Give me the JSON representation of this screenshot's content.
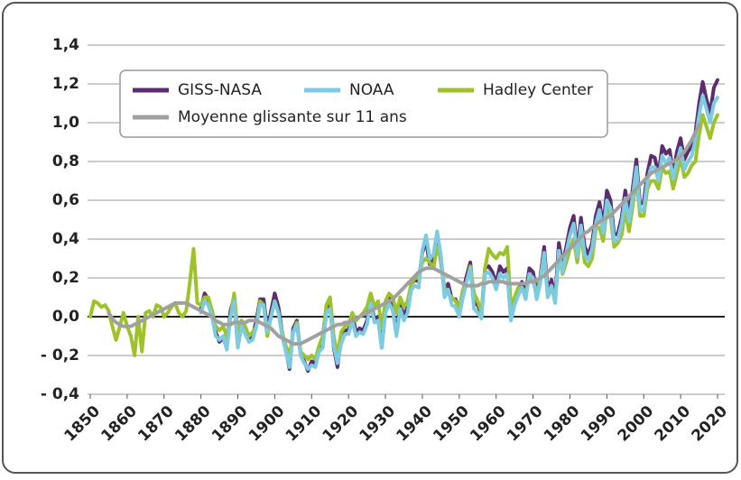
{
  "chart_data": {
    "type": "line",
    "x": [
      1850,
      1851,
      1852,
      1853,
      1854,
      1855,
      1856,
      1857,
      1858,
      1859,
      1860,
      1861,
      1862,
      1863,
      1864,
      1865,
      1866,
      1867,
      1868,
      1869,
      1870,
      1871,
      1872,
      1873,
      1874,
      1875,
      1876,
      1877,
      1878,
      1879,
      1880,
      1881,
      1882,
      1883,
      1884,
      1885,
      1886,
      1887,
      1888,
      1889,
      1890,
      1891,
      1892,
      1893,
      1894,
      1895,
      1896,
      1897,
      1898,
      1899,
      1900,
      1901,
      1902,
      1903,
      1904,
      1905,
      1906,
      1907,
      1908,
      1909,
      1910,
      1911,
      1912,
      1913,
      1914,
      1915,
      1916,
      1917,
      1918,
      1919,
      1920,
      1921,
      1922,
      1923,
      1924,
      1925,
      1926,
      1927,
      1928,
      1929,
      1930,
      1931,
      1932,
      1933,
      1934,
      1935,
      1936,
      1937,
      1938,
      1939,
      1940,
      1941,
      1942,
      1943,
      1944,
      1945,
      1946,
      1947,
      1948,
      1949,
      1950,
      1951,
      1952,
      1953,
      1954,
      1955,
      1956,
      1957,
      1958,
      1959,
      1960,
      1961,
      1962,
      1963,
      1964,
      1965,
      1966,
      1967,
      1968,
      1969,
      1970,
      1971,
      1972,
      1973,
      1974,
      1975,
      1976,
      1977,
      1978,
      1979,
      1980,
      1981,
      1982,
      1983,
      1984,
      1985,
      1986,
      1987,
      1988,
      1989,
      1990,
      1991,
      1992,
      1993,
      1994,
      1995,
      1996,
      1997,
      1998,
      1999,
      2000,
      2001,
      2002,
      2003,
      2004,
      2005,
      2006,
      2007,
      2008,
      2009,
      2010,
      2011,
      2012,
      2013,
      2014,
      2015,
      2016,
      2017,
      2018,
      2019,
      2020
    ],
    "series": [
      {
        "name": "GISS-NASA",
        "color": "#5b2d6e",
        "values": [
          null,
          null,
          null,
          null,
          null,
          null,
          null,
          null,
          null,
          null,
          null,
          null,
          null,
          null,
          null,
          null,
          null,
          null,
          null,
          null,
          null,
          null,
          null,
          null,
          null,
          null,
          null,
          null,
          null,
          null,
          0.04,
          0.12,
          0.09,
          0.03,
          -0.08,
          -0.13,
          -0.11,
          -0.16,
          0.03,
          0.1,
          -0.15,
          -0.02,
          -0.07,
          -0.11,
          -0.1,
          -0.02,
          0.09,
          0.09,
          -0.07,
          0.03,
          0.12,
          0.05,
          -0.08,
          -0.17,
          -0.27,
          -0.06,
          -0.02,
          -0.19,
          -0.23,
          -0.28,
          -0.23,
          -0.24,
          -0.16,
          -0.14,
          0.05,
          0.06,
          -0.16,
          -0.26,
          -0.1,
          -0.07,
          -0.07,
          0.01,
          -0.08,
          -0.06,
          -0.07,
          -0.02,
          0.1,
          -0.02,
          0.0,
          -0.16,
          0.04,
          0.1,
          0.04,
          -0.09,
          0.07,
          0.0,
          0.05,
          0.17,
          0.19,
          0.18,
          0.33,
          0.39,
          0.27,
          0.29,
          0.4,
          0.29,
          0.13,
          0.17,
          0.09,
          0.09,
          0.03,
          0.13,
          0.21,
          0.28,
          0.07,
          0.06,
          0.01,
          0.25,
          0.26,
          0.23,
          0.17,
          0.26,
          0.23,
          0.25,
          0.0,
          0.09,
          0.14,
          0.18,
          0.12,
          0.25,
          0.23,
          0.12,
          0.21,
          0.36,
          0.13,
          0.19,
          0.1,
          0.38,
          0.27,
          0.36,
          0.46,
          0.52,
          0.34,
          0.51,
          0.36,
          0.32,
          0.38,
          0.52,
          0.59,
          0.47,
          0.65,
          0.6,
          0.42,
          0.43,
          0.51,
          0.65,
          0.53,
          0.66,
          0.81,
          0.58,
          0.59,
          0.74,
          0.83,
          0.82,
          0.73,
          0.88,
          0.84,
          0.86,
          0.74,
          0.85,
          0.92,
          0.81,
          0.85,
          0.88,
          0.95,
          1.1,
          1.21,
          1.12,
          1.05,
          1.18,
          1.22
        ]
      },
      {
        "name": "NOAA",
        "color": "#7ccbe0",
        "values": [
          null,
          null,
          null,
          null,
          null,
          null,
          null,
          null,
          null,
          null,
          null,
          null,
          null,
          null,
          null,
          null,
          null,
          null,
          null,
          null,
          null,
          null,
          null,
          null,
          null,
          null,
          null,
          null,
          null,
          null,
          0.02,
          0.08,
          0.06,
          0.0,
          -0.1,
          -0.12,
          -0.1,
          -0.17,
          0.0,
          0.08,
          -0.16,
          -0.05,
          -0.09,
          -0.13,
          -0.12,
          -0.05,
          0.06,
          0.06,
          -0.08,
          0.0,
          0.08,
          0.02,
          -0.1,
          -0.18,
          -0.26,
          -0.08,
          -0.04,
          -0.2,
          -0.24,
          -0.27,
          -0.25,
          -0.26,
          -0.18,
          -0.16,
          0.02,
          0.04,
          -0.15,
          -0.24,
          -0.14,
          -0.09,
          -0.09,
          -0.02,
          -0.1,
          -0.08,
          -0.09,
          -0.04,
          0.07,
          -0.03,
          -0.02,
          -0.16,
          0.02,
          0.07,
          0.03,
          -0.1,
          0.04,
          -0.02,
          0.02,
          0.14,
          0.16,
          0.15,
          0.34,
          0.42,
          0.3,
          0.32,
          0.44,
          0.32,
          0.1,
          0.14,
          0.06,
          0.05,
          0.0,
          0.1,
          0.18,
          0.25,
          0.04,
          0.02,
          -0.01,
          0.22,
          0.23,
          0.2,
          0.14,
          0.22,
          0.2,
          0.22,
          -0.02,
          0.06,
          0.11,
          0.15,
          0.09,
          0.22,
          0.2,
          0.09,
          0.18,
          0.33,
          0.1,
          0.16,
          0.07,
          0.34,
          0.23,
          0.33,
          0.42,
          0.48,
          0.31,
          0.47,
          0.32,
          0.29,
          0.35,
          0.48,
          0.55,
          0.43,
          0.6,
          0.56,
          0.39,
          0.4,
          0.48,
          0.61,
          0.49,
          0.62,
          0.77,
          0.55,
          0.55,
          0.7,
          0.77,
          0.77,
          0.7,
          0.83,
          0.79,
          0.82,
          0.71,
          0.8,
          0.87,
          0.76,
          0.8,
          0.83,
          0.91,
          1.04,
          1.14,
          1.07,
          1.0,
          1.1,
          1.13
        ]
      },
      {
        "name": "Hadley Center",
        "color": "#9dc22a",
        "values": [
          0.0,
          0.08,
          0.07,
          0.05,
          0.06,
          0.03,
          -0.05,
          -0.12,
          -0.05,
          0.02,
          -0.05,
          -0.1,
          -0.2,
          0.0,
          -0.18,
          0.02,
          0.03,
          0.0,
          0.06,
          0.05,
          0.0,
          0.02,
          0.05,
          0.07,
          0.02,
          0.0,
          0.03,
          0.18,
          0.35,
          0.07,
          0.06,
          0.1,
          0.1,
          0.03,
          -0.05,
          -0.07,
          -0.05,
          -0.1,
          0.0,
          0.12,
          -0.08,
          -0.02,
          -0.05,
          -0.1,
          -0.08,
          -0.05,
          0.08,
          0.06,
          -0.1,
          0.0,
          0.08,
          0.02,
          -0.08,
          -0.15,
          -0.2,
          -0.08,
          -0.03,
          -0.18,
          -0.2,
          -0.22,
          -0.2,
          -0.22,
          -0.15,
          -0.1,
          0.06,
          0.1,
          -0.1,
          -0.2,
          -0.08,
          -0.05,
          -0.04,
          0.02,
          -0.02,
          0.0,
          0.02,
          0.05,
          0.12,
          0.05,
          0.08,
          -0.06,
          0.08,
          0.12,
          0.1,
          0.02,
          0.1,
          0.05,
          0.08,
          0.17,
          0.2,
          0.2,
          0.28,
          0.3,
          0.28,
          0.25,
          0.36,
          0.3,
          0.15,
          0.12,
          0.1,
          0.08,
          0.04,
          0.14,
          0.18,
          0.26,
          0.12,
          0.08,
          0.02,
          0.25,
          0.35,
          0.32,
          0.3,
          0.33,
          0.32,
          0.36,
          0.05,
          0.1,
          0.15,
          0.15,
          0.12,
          0.2,
          0.18,
          0.12,
          0.2,
          0.32,
          0.1,
          0.15,
          0.09,
          0.32,
          0.22,
          0.28,
          0.35,
          0.4,
          0.28,
          0.44,
          0.28,
          0.26,
          0.3,
          0.45,
          0.46,
          0.39,
          0.56,
          0.52,
          0.36,
          0.38,
          0.42,
          0.55,
          0.44,
          0.57,
          0.72,
          0.52,
          0.52,
          0.66,
          0.7,
          0.7,
          0.66,
          0.77,
          0.74,
          0.75,
          0.66,
          0.74,
          0.82,
          0.72,
          0.74,
          0.78,
          0.8,
          0.94,
          1.04,
          0.98,
          0.92,
          1.0,
          1.04
        ]
      },
      {
        "name": "Moyenne glissante sur 11 ans",
        "color": "#a0a0a0",
        "values": [
          null,
          null,
          null,
          null,
          null,
          0.02,
          -0.01,
          -0.03,
          -0.04,
          -0.05,
          -0.05,
          -0.05,
          -0.04,
          -0.03,
          -0.02,
          -0.01,
          0.0,
          0.01,
          0.02,
          0.03,
          0.04,
          0.05,
          0.06,
          0.07,
          0.07,
          0.07,
          0.07,
          0.06,
          0.05,
          0.04,
          0.03,
          0.02,
          0.01,
          0.0,
          -0.02,
          -0.03,
          -0.04,
          -0.04,
          -0.04,
          -0.03,
          -0.03,
          -0.03,
          -0.03,
          -0.02,
          -0.02,
          -0.02,
          -0.03,
          -0.04,
          -0.05,
          -0.06,
          -0.08,
          -0.1,
          -0.11,
          -0.12,
          -0.13,
          -0.14,
          -0.14,
          -0.14,
          -0.13,
          -0.12,
          -0.11,
          -0.1,
          -0.09,
          -0.08,
          -0.07,
          -0.06,
          -0.05,
          -0.04,
          -0.04,
          -0.03,
          -0.03,
          -0.02,
          -0.01,
          0.0,
          0.01,
          0.02,
          0.03,
          0.04,
          0.05,
          0.06,
          0.07,
          0.08,
          0.09,
          0.11,
          0.13,
          0.15,
          0.17,
          0.19,
          0.21,
          0.23,
          0.24,
          0.25,
          0.25,
          0.25,
          0.24,
          0.23,
          0.22,
          0.21,
          0.2,
          0.19,
          0.18,
          0.17,
          0.16,
          0.16,
          0.16,
          0.16,
          0.17,
          0.17,
          0.18,
          0.18,
          0.18,
          0.18,
          0.18,
          0.17,
          0.17,
          0.17,
          0.17,
          0.17,
          0.17,
          0.18,
          0.18,
          0.19,
          0.2,
          0.21,
          0.23,
          0.25,
          0.27,
          0.29,
          0.31,
          0.33,
          0.35,
          0.37,
          0.39,
          0.41,
          0.43,
          0.44,
          0.46,
          0.47,
          0.49,
          0.5,
          0.51,
          0.52,
          0.54,
          0.56,
          0.58,
          0.6,
          0.62,
          0.64,
          0.66,
          0.68,
          0.7,
          0.72,
          0.74,
          0.75,
          0.76,
          0.77,
          0.78,
          0.79,
          0.8,
          0.81,
          0.83,
          0.85,
          0.88,
          0.91,
          0.95,
          0.99,
          null,
          null,
          null,
          null,
          null
        ]
      }
    ],
    "xlim": [
      1850,
      2020
    ],
    "xticks": [
      1850,
      1860,
      1870,
      1880,
      1890,
      1900,
      1910,
      1920,
      1930,
      1940,
      1950,
      1960,
      1970,
      1980,
      1990,
      2000,
      2010,
      2020
    ],
    "ylim": [
      -0.4,
      1.4
    ],
    "yticks": [
      {
        "value": 1.4,
        "label": "1,4"
      },
      {
        "value": 1.2,
        "label": "1,2"
      },
      {
        "value": 1.0,
        "label": "1,0"
      },
      {
        "value": 0.8,
        "label": "0,8"
      },
      {
        "value": 0.6,
        "label": "0,6"
      },
      {
        "value": 0.4,
        "label": "0,4"
      },
      {
        "value": 0.2,
        "label": "0,2"
      },
      {
        "value": 0.0,
        "label": "0,0"
      },
      {
        "value": -0.2,
        "label": "- 0,2"
      },
      {
        "value": -0.4,
        "label": "- 0,4"
      }
    ],
    "grid": true,
    "legend": "upper left"
  }
}
